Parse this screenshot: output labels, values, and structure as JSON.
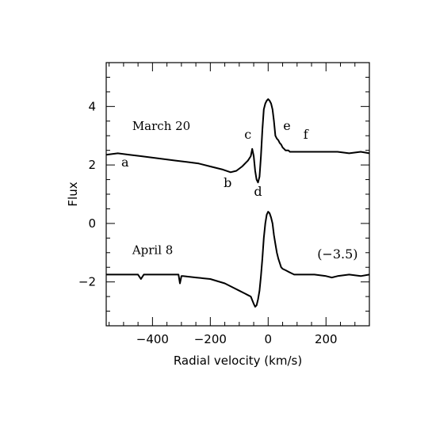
{
  "chart_data": {
    "type": "line",
    "title": "",
    "xlabel": "Radial velocity (km/s)",
    "ylabel": "Flux",
    "xlim": [
      -560,
      350
    ],
    "ylim": [
      -3.5,
      5.5
    ],
    "grid": false,
    "xticks": {
      "major": [
        -400,
        -200,
        0,
        200
      ],
      "labels": [
        "−400",
        "−200",
        "0",
        "200"
      ],
      "minor_step": 50
    },
    "yticks": {
      "major": [
        -2,
        0,
        2,
        4
      ],
      "labels": [
        "−2",
        "0",
        "2",
        "4"
      ],
      "minor_step": 0.5
    },
    "series": [
      {
        "name": "March 20",
        "label_at": [
          -470,
          3.2
        ],
        "x": [
          -560,
          -520,
          -480,
          -440,
          -400,
          -360,
          -320,
          -280,
          -240,
          -200,
          -160,
          -130,
          -110,
          -90,
          -70,
          -60,
          -55,
          -50,
          -45,
          -40,
          -35,
          -30,
          -25,
          -20,
          -15,
          -10,
          -5,
          0,
          5,
          10,
          15,
          20,
          25,
          30,
          35,
          40,
          45,
          50,
          55,
          60,
          65,
          70,
          75,
          80,
          90,
          100,
          120,
          140,
          160,
          200,
          240,
          280,
          320,
          350
        ],
        "y": [
          2.35,
          2.4,
          2.35,
          2.3,
          2.25,
          2.2,
          2.15,
          2.1,
          2.05,
          1.95,
          1.85,
          1.75,
          1.8,
          1.95,
          2.15,
          2.3,
          2.55,
          2.3,
          1.8,
          1.5,
          1.4,
          1.6,
          2.3,
          3.2,
          3.9,
          4.1,
          4.2,
          4.25,
          4.2,
          4.1,
          3.9,
          3.5,
          3.0,
          2.9,
          2.85,
          2.75,
          2.7,
          2.6,
          2.55,
          2.5,
          2.5,
          2.5,
          2.45,
          2.45,
          2.45,
          2.45,
          2.45,
          2.45,
          2.45,
          2.45,
          2.45,
          2.4,
          2.45,
          2.4
        ]
      },
      {
        "name": "April 8",
        "label_at": [
          -470,
          -1.05
        ],
        "x": [
          -560,
          -500,
          -450,
          -440,
          -430,
          -400,
          -350,
          -310,
          -305,
          -300,
          -295,
          -250,
          -200,
          -150,
          -120,
          -100,
          -80,
          -70,
          -60,
          -50,
          -45,
          -40,
          -35,
          -30,
          -25,
          -20,
          -15,
          -10,
          -5,
          0,
          5,
          10,
          15,
          20,
          25,
          30,
          35,
          40,
          45,
          50,
          60,
          70,
          80,
          90,
          100,
          120,
          140,
          160,
          200,
          220,
          240,
          280,
          320,
          350
        ],
        "y": [
          -1.75,
          -1.75,
          -1.75,
          -1.9,
          -1.75,
          -1.75,
          -1.75,
          -1.75,
          -2.05,
          -1.8,
          -1.8,
          -1.85,
          -1.9,
          -2.05,
          -2.2,
          -2.3,
          -2.4,
          -2.45,
          -2.5,
          -2.75,
          -2.85,
          -2.8,
          -2.6,
          -2.3,
          -1.8,
          -1.2,
          -0.5,
          0.0,
          0.3,
          0.4,
          0.35,
          0.2,
          0.0,
          -0.4,
          -0.7,
          -1.0,
          -1.2,
          -1.35,
          -1.5,
          -1.55,
          -1.6,
          -1.65,
          -1.7,
          -1.75,
          -1.75,
          -1.75,
          -1.75,
          -1.75,
          -1.8,
          -1.85,
          -1.8,
          -1.75,
          -1.8,
          -1.75
        ]
      }
    ],
    "annotations": [
      {
        "text": "a",
        "x": -495,
        "y": 1.95
      },
      {
        "text": "b",
        "x": -140,
        "y": 1.25
      },
      {
        "text": "c",
        "x": -70,
        "y": 2.9
      },
      {
        "text": "d",
        "x": -35,
        "y": 0.95
      },
      {
        "text": "e",
        "x": 65,
        "y": 3.2
      },
      {
        "text": "f",
        "x": 130,
        "y": 2.9
      },
      {
        "text": "(−3.5)",
        "x": 240,
        "y": -1.2
      }
    ]
  }
}
